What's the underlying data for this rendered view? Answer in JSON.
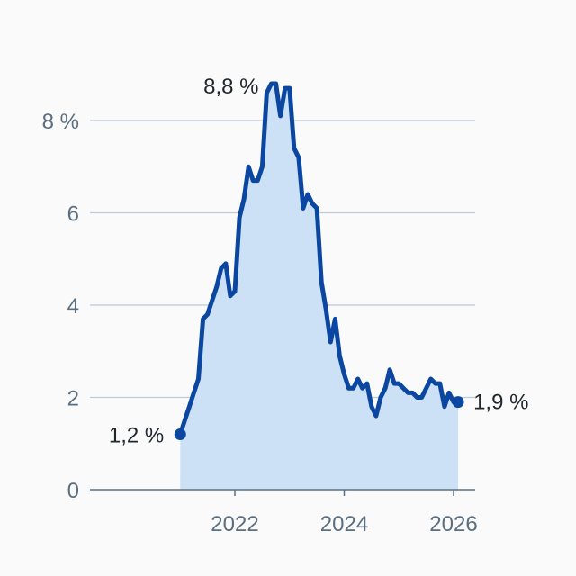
{
  "chart_data": {
    "type": "area",
    "title": "",
    "xlabel": "",
    "ylabel": "",
    "x_start": 2021.0,
    "x_step_months": 1,
    "values": [
      1.2,
      1.5,
      1.8,
      2.1,
      2.4,
      3.7,
      3.8,
      4.1,
      4.4,
      4.8,
      4.9,
      4.2,
      4.3,
      5.9,
      6.3,
      7.0,
      6.7,
      6.7,
      7.0,
      8.6,
      8.8,
      8.8,
      8.1,
      8.7,
      8.7,
      7.4,
      7.2,
      6.1,
      6.4,
      6.2,
      6.1,
      4.5,
      3.9,
      3.2,
      3.7,
      2.9,
      2.5,
      2.2,
      2.2,
      2.4,
      2.2,
      2.3,
      1.8,
      1.6,
      2.0,
      2.2,
      2.6,
      2.3,
      2.3,
      2.2,
      2.1,
      2.1,
      2.0,
      2.0,
      2.2,
      2.4,
      2.3,
      2.3,
      1.8,
      2.1,
      1.9,
      1.9
    ],
    "xlim": [
      2020.0,
      2026.4
    ],
    "ylim": [
      0,
      8.8
    ],
    "x_ticks": [
      {
        "value": 2022,
        "label": "2022"
      },
      {
        "value": 2024,
        "label": "2024"
      },
      {
        "value": 2026,
        "label": "2026"
      }
    ],
    "y_ticks": [
      {
        "value": 0,
        "label": "0"
      },
      {
        "value": 2,
        "label": "2"
      },
      {
        "value": 4,
        "label": "4"
      },
      {
        "value": 6,
        "label": "6"
      },
      {
        "value": 8,
        "label": "8 %"
      }
    ],
    "grid": true,
    "annotations": {
      "start": "1,2 %",
      "peak": "8,8 %",
      "end": "1,9 %"
    },
    "colors": {
      "line": "#0b47a1",
      "fill": "#cce1f5",
      "grid": "#bccbd8",
      "axis": "#5b6f80"
    }
  }
}
